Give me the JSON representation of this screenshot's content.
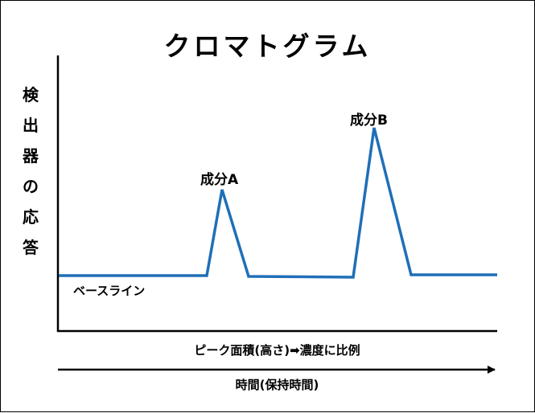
{
  "title": "クロマトグラム",
  "y_axis_label": [
    "検",
    "出",
    "器",
    "の",
    "応",
    "答"
  ],
  "baseline_label": "ベースライン",
  "peaks": [
    {
      "label": "成分A"
    },
    {
      "label": "成分B"
    }
  ],
  "area_note": "ピーク面積(高さ)➡濃度に比例",
  "time_axis_label": "時間(保持時間)",
  "colors": {
    "signal": "#1f6fb8",
    "axes": "#000000"
  }
}
